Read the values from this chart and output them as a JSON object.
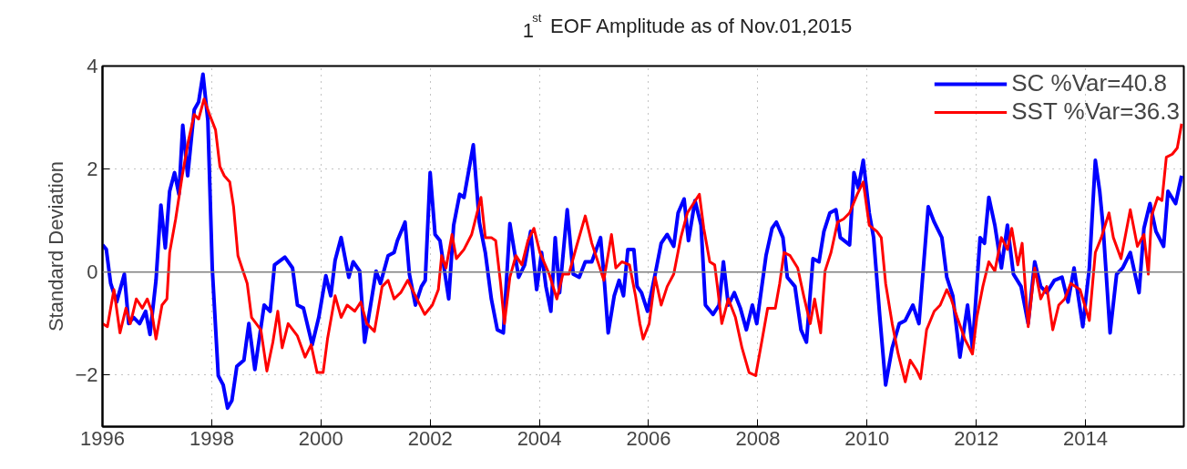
{
  "chart_data": {
    "type": "line",
    "title": "1$^{st}$ EOF Amplitude as of Nov.01,2015",
    "ylabel": "Standard Deviation",
    "xlim": [
      1996,
      2015.8
    ],
    "xticks": [
      1996,
      1998,
      2000,
      2002,
      2004,
      2006,
      2008,
      2010,
      2012,
      2014
    ],
    "ylim": [
      -3,
      4
    ],
    "yticks": [
      -2,
      0,
      2,
      4
    ],
    "grid": true,
    "legend": "top right",
    "line_style": "solid",
    "ref_lines": [
      {
        "axis": "y",
        "value": 0,
        "color": "#808080"
      }
    ],
    "series": [
      {
        "name": "SC %Var=40.8",
        "color": "#0000ff",
        "x": [
          1996.0,
          1996.07,
          1996.15,
          1996.26,
          1996.4,
          1996.48,
          1996.57,
          1996.68,
          1996.79,
          1996.87,
          1996.98,
          1997.07,
          1997.15,
          1997.23,
          1997.32,
          1997.4,
          1997.47,
          1997.56,
          1997.68,
          1997.76,
          1997.84,
          1997.93,
          1998.01,
          1998.12,
          1998.21,
          1998.29,
          1998.37,
          1998.46,
          1998.59,
          1998.68,
          1998.79,
          1998.96,
          1999.07,
          1999.15,
          1999.34,
          1999.48,
          1999.57,
          1999.68,
          1999.84,
          1999.96,
          2000.09,
          2000.18,
          2000.26,
          2000.37,
          2000.51,
          2000.59,
          2000.71,
          2000.8,
          2001.01,
          2001.09,
          2001.23,
          2001.34,
          2001.4,
          2001.54,
          2001.62,
          2001.73,
          2001.84,
          2001.91,
          2002.0,
          2002.09,
          2002.18,
          2002.34,
          2002.43,
          2002.54,
          2002.62,
          2002.79,
          2002.9,
          2003.01,
          2003.12,
          2003.23,
          2003.34,
          2003.46,
          2003.62,
          2003.73,
          2003.84,
          2003.95,
          2004.04,
          2004.12,
          2004.21,
          2004.29,
          2004.37,
          2004.51,
          2004.62,
          2004.73,
          2004.84,
          2004.96,
          2005.12,
          2005.18,
          2005.26,
          2005.37,
          2005.46,
          2005.54,
          2005.62,
          2005.73,
          2005.79,
          2005.87,
          2005.98,
          2006.12,
          2006.23,
          2006.34,
          2006.46,
          2006.54,
          2006.65,
          2006.73,
          2006.85,
          2006.96,
          2007.04,
          2007.18,
          2007.29,
          2007.37,
          2007.46,
          2007.57,
          2007.68,
          2007.79,
          2007.9,
          2007.98,
          2008.15,
          2008.26,
          2008.34,
          2008.46,
          2008.54,
          2008.68,
          2008.79,
          2008.89,
          2009.01,
          2009.12,
          2009.21,
          2009.32,
          2009.43,
          2009.51,
          2009.68,
          2009.76,
          2009.84,
          2009.93,
          2010.04,
          2010.12,
          2010.23,
          2010.34,
          2010.46,
          2010.59,
          2010.7,
          2010.84,
          2010.95,
          2011.12,
          2011.23,
          2011.37,
          2011.46,
          2011.57,
          2011.7,
          2011.84,
          2011.93,
          2012.07,
          2012.15,
          2012.23,
          2012.34,
          2012.46,
          2012.57,
          2012.68,
          2012.82,
          2012.95,
          2013.07,
          2013.18,
          2013.29,
          2013.43,
          2013.57,
          2013.68,
          2013.79,
          2013.95,
          2014.07,
          2014.18,
          2014.26,
          2014.32,
          2014.45,
          2014.57,
          2014.68,
          2014.82,
          2014.98,
          2015.07,
          2015.18,
          2015.29,
          2015.43,
          2015.51,
          2015.65,
          2015.76
        ],
        "values": [
          0.53,
          0.44,
          -0.22,
          -0.58,
          -0.04,
          -1.0,
          -0.88,
          -1.0,
          -0.76,
          -1.21,
          -0.16,
          1.3,
          0.47,
          1.57,
          1.93,
          1.51,
          2.85,
          1.87,
          3.15,
          3.3,
          3.84,
          2.94,
          0.08,
          -2.01,
          -2.19,
          -2.64,
          -2.49,
          -1.83,
          -1.71,
          -1.0,
          -1.89,
          -0.64,
          -0.76,
          0.14,
          0.29,
          0.08,
          -0.64,
          -0.7,
          -1.41,
          -0.88,
          -0.07,
          -0.46,
          0.23,
          0.67,
          -0.1,
          0.2,
          0.02,
          -1.36,
          0.02,
          -0.22,
          0.32,
          0.38,
          0.61,
          0.97,
          -0.04,
          -0.64,
          -0.28,
          -0.16,
          1.93,
          0.73,
          0.61,
          -0.52,
          0.91,
          1.51,
          1.45,
          2.47,
          0.97,
          0.38,
          -0.52,
          -1.12,
          -1.18,
          0.94,
          -0.1,
          0.14,
          0.79,
          -0.34,
          0.38,
          -0.28,
          -0.76,
          0.67,
          -0.4,
          1.21,
          -0.04,
          -0.1,
          0.2,
          0.2,
          0.67,
          -0.04,
          -1.18,
          -0.46,
          -0.16,
          -0.46,
          0.44,
          0.44,
          -0.28,
          -0.4,
          -0.76,
          -0.04,
          0.56,
          0.73,
          0.5,
          1.15,
          1.42,
          0.61,
          1.39,
          0.91,
          -0.64,
          -0.82,
          -0.64,
          0.2,
          -0.64,
          -0.4,
          -0.7,
          -1.12,
          -0.64,
          -1.0,
          0.32,
          0.85,
          0.97,
          0.67,
          -0.1,
          -0.28,
          -1.12,
          -1.36,
          0.26,
          0.2,
          0.79,
          1.15,
          1.21,
          0.67,
          0.53,
          1.93,
          1.63,
          2.17,
          1.15,
          0.67,
          -0.82,
          -2.19,
          -1.47,
          -1.0,
          -0.94,
          -0.64,
          -1.0,
          1.27,
          0.97,
          0.67,
          -0.1,
          -0.46,
          -1.65,
          -0.64,
          -1.47,
          0.67,
          0.56,
          1.45,
          0.91,
          0.08,
          0.91,
          -0.04,
          -0.28,
          -1.0,
          0.2,
          -0.28,
          -0.4,
          -0.16,
          -0.1,
          -0.58,
          0.08,
          -1.06,
          0.08,
          2.17,
          1.57,
          0.91,
          -1.18,
          -0.04,
          0.08,
          0.38,
          -0.4,
          0.85,
          1.33,
          0.79,
          0.5,
          1.57,
          1.33,
          1.87
        ]
      },
      {
        "name": "SST %Var=36.3",
        "color": "#ff0000",
        "x": [
          1996.0,
          1996.09,
          1996.21,
          1996.32,
          1996.43,
          1996.51,
          1996.62,
          1996.73,
          1996.82,
          1996.9,
          1996.98,
          1997.09,
          1997.18,
          1997.23,
          1997.34,
          1997.46,
          1997.57,
          1997.68,
          1997.76,
          1997.86,
          1997.96,
          1998.07,
          1998.15,
          1998.23,
          1998.33,
          1998.4,
          1998.48,
          1998.65,
          1998.73,
          1998.9,
          1999.01,
          1999.12,
          1999.21,
          1999.29,
          1999.4,
          1999.57,
          1999.71,
          1999.82,
          1999.93,
          2000.04,
          2000.12,
          2000.26,
          2000.37,
          2000.48,
          2000.62,
          2000.73,
          2000.84,
          2000.98,
          2001.12,
          2001.23,
          2001.34,
          2001.46,
          2001.59,
          2001.73,
          2001.9,
          2002.04,
          2002.15,
          2002.21,
          2002.29,
          2002.4,
          2002.48,
          2002.62,
          2002.76,
          2002.93,
          2003.01,
          2003.12,
          2003.2,
          2003.29,
          2003.36,
          2003.46,
          2003.57,
          2003.68,
          2003.79,
          2003.9,
          2004.01,
          2004.18,
          2004.32,
          2004.43,
          2004.54,
          2004.68,
          2004.84,
          2004.96,
          2005.09,
          2005.18,
          2005.32,
          2005.4,
          2005.51,
          2005.65,
          2005.76,
          2005.84,
          2005.9,
          2006.01,
          2006.12,
          2006.23,
          2006.34,
          2006.46,
          2006.59,
          2006.71,
          2006.82,
          2006.93,
          2007.01,
          2007.12,
          2007.21,
          2007.26,
          2007.34,
          2007.46,
          2007.59,
          2007.71,
          2007.84,
          2007.96,
          2008.07,
          2008.18,
          2008.32,
          2008.4,
          2008.48,
          2008.59,
          2008.73,
          2008.84,
          2008.96,
          2009.04,
          2009.15,
          2009.23,
          2009.34,
          2009.46,
          2009.57,
          2009.68,
          2009.82,
          2009.93,
          2010.04,
          2010.18,
          2010.26,
          2010.34,
          2010.46,
          2010.57,
          2010.7,
          2010.79,
          2010.9,
          2010.98,
          2011.09,
          2011.23,
          2011.34,
          2011.46,
          2011.54,
          2011.65,
          2011.79,
          2011.93,
          2012.01,
          2012.12,
          2012.23,
          2012.34,
          2012.46,
          2012.57,
          2012.65,
          2012.76,
          2012.84,
          2012.95,
          2013.07,
          2013.18,
          2013.29,
          2013.4,
          2013.51,
          2013.62,
          2013.73,
          2013.9,
          2014.07,
          2014.18,
          2014.29,
          2014.43,
          2014.51,
          2014.65,
          2014.82,
          2014.95,
          2015.07,
          2015.15,
          2015.21,
          2015.32,
          2015.4,
          2015.48,
          2015.59,
          2015.68,
          2015.76
        ],
        "values": [
          -1.0,
          -1.06,
          -0.34,
          -1.18,
          -0.7,
          -1.0,
          -0.52,
          -0.7,
          -0.52,
          -0.76,
          -1.3,
          -0.64,
          -0.52,
          0.38,
          1.03,
          1.87,
          2.53,
          3.06,
          2.97,
          3.36,
          3.06,
          2.76,
          2.05,
          1.87,
          1.75,
          1.27,
          0.32,
          -0.22,
          -0.88,
          -1.12,
          -1.92,
          -1.36,
          -0.76,
          -1.47,
          -1.0,
          -1.24,
          -1.65,
          -1.41,
          -1.95,
          -1.95,
          -1.3,
          -0.46,
          -0.88,
          -0.64,
          -0.76,
          -0.58,
          -1.0,
          -1.15,
          -0.28,
          -0.16,
          -0.52,
          -0.4,
          -0.16,
          -0.46,
          -0.82,
          -0.64,
          -0.34,
          0.32,
          0.08,
          0.73,
          0.26,
          0.44,
          0.73,
          1.45,
          0.67,
          0.67,
          0.61,
          -0.22,
          -1.0,
          -0.1,
          0.32,
          0.14,
          0.61,
          0.85,
          0.38,
          -0.04,
          -0.52,
          -0.04,
          -0.04,
          0.5,
          1.09,
          0.56,
          0.14,
          -0.16,
          0.73,
          0.08,
          0.2,
          0.14,
          -0.46,
          -1.0,
          -1.3,
          -1.0,
          -0.1,
          -0.64,
          -0.28,
          -0.04,
          0.67,
          1.15,
          1.33,
          1.51,
          0.85,
          0.2,
          0.14,
          -0.28,
          -1.0,
          -0.52,
          -0.88,
          -1.47,
          -1.95,
          -2.01,
          -1.36,
          -0.7,
          -0.7,
          -0.22,
          0.38,
          0.32,
          0.08,
          -0.46,
          -1.0,
          -0.52,
          -1.18,
          0.02,
          0.38,
          0.97,
          1.03,
          1.15,
          1.51,
          1.75,
          0.91,
          0.79,
          0.67,
          -0.22,
          -1.0,
          -1.59,
          -2.13,
          -1.71,
          -1.89,
          -2.07,
          -1.12,
          -0.76,
          -0.64,
          -0.34,
          -0.52,
          -0.88,
          -1.3,
          -1.59,
          -0.88,
          -0.28,
          0.2,
          0.02,
          0.67,
          0.44,
          0.85,
          0.14,
          0.56,
          -1.06,
          0.08,
          -0.52,
          -0.28,
          -1.12,
          -0.64,
          -0.52,
          -0.22,
          -0.34,
          -0.94,
          0.38,
          0.67,
          1.15,
          0.67,
          0.26,
          1.21,
          0.5,
          0.73,
          -0.04,
          1.09,
          1.45,
          1.39,
          2.23,
          2.29,
          2.41,
          2.88
        ]
      }
    ]
  }
}
